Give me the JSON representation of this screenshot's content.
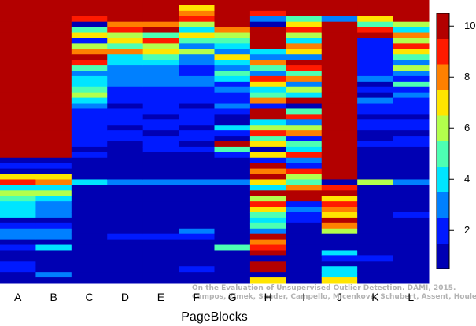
{
  "chart_data": {
    "type": "heatmap",
    "title": "",
    "xlabel": "PageBlocks",
    "ylabel": "",
    "categories": [
      "A",
      "B",
      "C",
      "D",
      "E",
      "F",
      "G",
      "H",
      "I",
      "J",
      "K",
      "L"
    ],
    "colorbar": {
      "ticks": [
        2,
        4,
        6,
        8,
        10
      ],
      "range": [
        0.5,
        10.5
      ],
      "colormap": "jet"
    },
    "rows": 52,
    "note": "Each column lists per-row color values (1 = dark blue, 10 = dark red), top row first.",
    "columns": [
      {
        "label": "A",
        "values": [
          10,
          10,
          10,
          10,
          10,
          10,
          10,
          10,
          10,
          10,
          10,
          10,
          10,
          10,
          10,
          10,
          10,
          10,
          10,
          10,
          10,
          10,
          10,
          10,
          10,
          10,
          10,
          10,
          10,
          1,
          2,
          1,
          7,
          9,
          4,
          6,
          5,
          4,
          4,
          4,
          1,
          2,
          3,
          3,
          1,
          2,
          1,
          1,
          2,
          2,
          1,
          1
        ]
      },
      {
        "label": "B",
        "values": [
          10,
          10,
          10,
          10,
          10,
          10,
          10,
          10,
          10,
          10,
          10,
          10,
          10,
          10,
          10,
          10,
          10,
          10,
          10,
          10,
          10,
          10,
          10,
          10,
          10,
          10,
          10,
          10,
          10,
          1,
          2,
          1,
          7,
          8,
          4,
          6,
          4,
          3,
          3,
          3,
          1,
          2,
          3,
          3,
          1,
          4,
          1,
          1,
          1,
          1,
          3,
          1
        ]
      },
      {
        "label": "C",
        "values": [
          10,
          10,
          10,
          9,
          1,
          5,
          7,
          2,
          6,
          8,
          10,
          9,
          5,
          3,
          4,
          4,
          5,
          6,
          4,
          3,
          2,
          2,
          2,
          2,
          2,
          2,
          2,
          1,
          2,
          1,
          1,
          1,
          1,
          4,
          1,
          1,
          1,
          1,
          1,
          1,
          1,
          1,
          1,
          1,
          1,
          1,
          1,
          1,
          1,
          1,
          1,
          1
        ]
      },
      {
        "label": "D",
        "values": [
          10,
          10,
          10,
          10,
          8,
          9,
          6,
          7,
          5,
          8,
          4,
          4,
          3,
          3,
          3,
          3,
          2,
          2,
          2,
          1,
          2,
          2,
          2,
          1,
          2,
          2,
          1,
          1,
          1,
          1,
          1,
          1,
          1,
          3,
          1,
          1,
          1,
          1,
          1,
          1,
          1,
          1,
          1,
          2,
          1,
          1,
          1,
          1,
          1,
          1,
          1,
          1
        ]
      },
      {
        "label": "E",
        "values": [
          10,
          10,
          10,
          10,
          8,
          10,
          5,
          9,
          6,
          7,
          5,
          4,
          3,
          3,
          3,
          3,
          2,
          2,
          2,
          2,
          2,
          1,
          2,
          2,
          1,
          2,
          2,
          2,
          1,
          1,
          1,
          1,
          1,
          3,
          1,
          1,
          1,
          1,
          1,
          1,
          1,
          1,
          1,
          2,
          1,
          1,
          1,
          1,
          1,
          1,
          1,
          1
        ]
      },
      {
        "label": "F",
        "values": [
          10,
          7,
          8,
          9,
          6,
          4,
          7,
          5,
          3,
          6,
          3,
          3,
          2,
          2,
          3,
          3,
          2,
          2,
          2,
          1,
          2,
          2,
          2,
          1,
          2,
          2,
          1,
          2,
          1,
          1,
          1,
          1,
          1,
          3,
          1,
          1,
          1,
          1,
          1,
          1,
          1,
          1,
          3,
          2,
          1,
          1,
          1,
          1,
          1,
          2,
          1,
          1
        ]
      },
      {
        "label": "G",
        "values": [
          10,
          10,
          10,
          10,
          10,
          8,
          6,
          5,
          4,
          3,
          7,
          4,
          3,
          5,
          4,
          2,
          3,
          2,
          2,
          3,
          2,
          1,
          1,
          4,
          2,
          1,
          10,
          5,
          2,
          1,
          1,
          1,
          1,
          3,
          1,
          1,
          1,
          1,
          1,
          1,
          1,
          1,
          1,
          1,
          1,
          5,
          1,
          1,
          1,
          1,
          1,
          1
        ]
      },
      {
        "label": "H",
        "values": [
          10,
          10,
          9,
          3,
          1,
          10,
          10,
          10,
          10,
          4,
          3,
          8,
          5,
          3,
          9,
          7,
          4,
          5,
          8,
          2,
          10,
          10,
          4,
          6,
          9,
          5,
          7,
          1,
          7,
          2,
          10,
          8,
          10,
          7,
          4,
          10,
          6,
          9,
          7,
          5,
          4,
          5,
          3,
          10,
          8,
          9,
          10,
          1,
          10,
          10,
          1,
          7
        ]
      },
      {
        "label": "I",
        "values": [
          10,
          10,
          10,
          5,
          7,
          9,
          6,
          4,
          8,
          7,
          3,
          10,
          9,
          5,
          8,
          3,
          6,
          4,
          10,
          1,
          5,
          9,
          3,
          6,
          8,
          2,
          5,
          4,
          9,
          3,
          2,
          9,
          6,
          5,
          8,
          10,
          10,
          2,
          3,
          2,
          2,
          1,
          1,
          1,
          1,
          1,
          1,
          1,
          1,
          1,
          1,
          1
        ]
      },
      {
        "label": "J",
        "values": [
          10,
          10,
          10,
          3,
          10,
          10,
          10,
          10,
          10,
          10,
          10,
          10,
          10,
          10,
          10,
          10,
          10,
          10,
          10,
          10,
          10,
          10,
          10,
          10,
          10,
          10,
          10,
          10,
          10,
          10,
          10,
          10,
          10,
          1,
          9,
          10,
          7,
          9,
          8,
          7,
          10,
          8,
          6,
          1,
          1,
          1,
          4,
          2,
          1,
          4,
          4,
          7
        ]
      },
      {
        "label": "K",
        "values": [
          10,
          10,
          10,
          7,
          5,
          9,
          10,
          2,
          2,
          2,
          2,
          2,
          2,
          2,
          3,
          1,
          2,
          1,
          3,
          2,
          2,
          1,
          2,
          2,
          1,
          1,
          2,
          1,
          1,
          1,
          1,
          1,
          1,
          6,
          1,
          1,
          1,
          1,
          1,
          1,
          1,
          1,
          1,
          1,
          1,
          1,
          1,
          2,
          1,
          1,
          1,
          1
        ]
      },
      {
        "label": "L",
        "values": [
          10,
          10,
          10,
          10,
          6,
          4,
          8,
          6,
          9,
          7,
          5,
          3,
          6,
          3,
          2,
          5,
          2,
          3,
          2,
          2,
          2,
          1,
          2,
          2,
          1,
          2,
          2,
          1,
          1,
          1,
          1,
          1,
          1,
          3,
          1,
          1,
          1,
          1,
          1,
          2,
          1,
          1,
          1,
          1,
          1,
          1,
          1,
          1,
          1,
          1,
          1,
          1
        ]
      }
    ]
  },
  "colors": {
    "background": "#8b0000",
    "cell_outline": "#ffffff"
  },
  "credit": {
    "line1": "On the Evaluation of Unsupervised Outlier Detection. DAMI, 2015.",
    "line2": "Campos, Zimek, Sander, Campello, Micenková, Schubert, Assent, Houle"
  }
}
